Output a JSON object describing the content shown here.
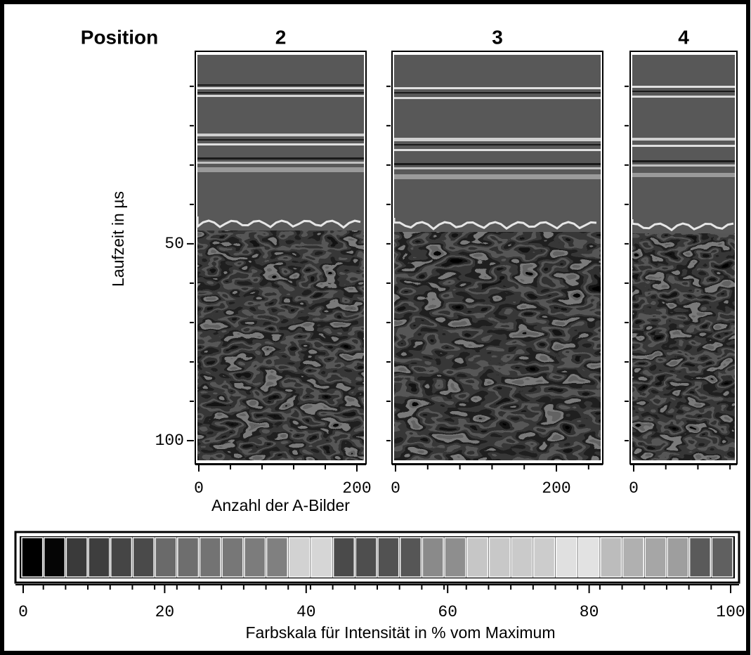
{
  "figure_label": "Position",
  "chart_data": [
    {
      "type": "heatmap",
      "title": "2",
      "xlim": [
        0,
        208
      ],
      "xticks": [
        0,
        200
      ],
      "xminor": [
        40,
        80,
        120,
        160
      ],
      "ylim": [
        2,
        105
      ],
      "y_inverted": true,
      "yticks": [
        50,
        100
      ],
      "yminor": [
        10,
        20,
        30,
        40,
        60,
        70,
        80,
        90
      ],
      "ylabel": "Laufzeit in µs",
      "xlabel": "Anzahl der A-Bilder"
    },
    {
      "type": "heatmap",
      "title": "3",
      "xlim": [
        0,
        255
      ],
      "xticks": [
        0,
        200
      ],
      "xminor": [
        40,
        80,
        120,
        160,
        240
      ],
      "ylim": [
        2,
        105
      ],
      "y_inverted": true,
      "yminor": [
        10,
        20,
        30,
        40,
        50,
        60,
        70,
        80,
        90,
        100
      ]
    },
    {
      "type": "heatmap",
      "title": "4",
      "xlim": [
        0,
        126
      ],
      "xticks": [
        0
      ],
      "xminor": [
        40,
        80,
        120
      ],
      "ylim": [
        2,
        105
      ],
      "y_inverted": true,
      "yminor": [
        10,
        20,
        30,
        40,
        50,
        60,
        70,
        80,
        90,
        100
      ]
    },
    {
      "type": "colorbar",
      "xlim": [
        0,
        100
      ],
      "xticks": [
        0,
        20,
        40,
        60,
        80,
        100
      ],
      "xlabel": "Farbskala für Intensität in % vom Maximum",
      "colors": [
        "#000000",
        "#050505",
        "#3a3a3a",
        "#3e3e3e",
        "#454545",
        "#4a4a4a",
        "#6a6a6a",
        "#6e6e6e",
        "#737373",
        "#777777",
        "#7c7c7c",
        "#808080",
        "#d2d2d2",
        "#d6d6d6",
        "#4a4a4a",
        "#4e4e4e",
        "#525252",
        "#565656",
        "#8a8a8a",
        "#8e8e8e",
        "#c6c6c6",
        "#c8c8c8",
        "#cacaca",
        "#cccccc",
        "#e0e0e0",
        "#e2e2e2",
        "#bcbcbc",
        "#b0b0b0",
        "#a6a6a6",
        "#9e9e9e",
        "#5a5a5a",
        "#606060"
      ]
    }
  ]
}
